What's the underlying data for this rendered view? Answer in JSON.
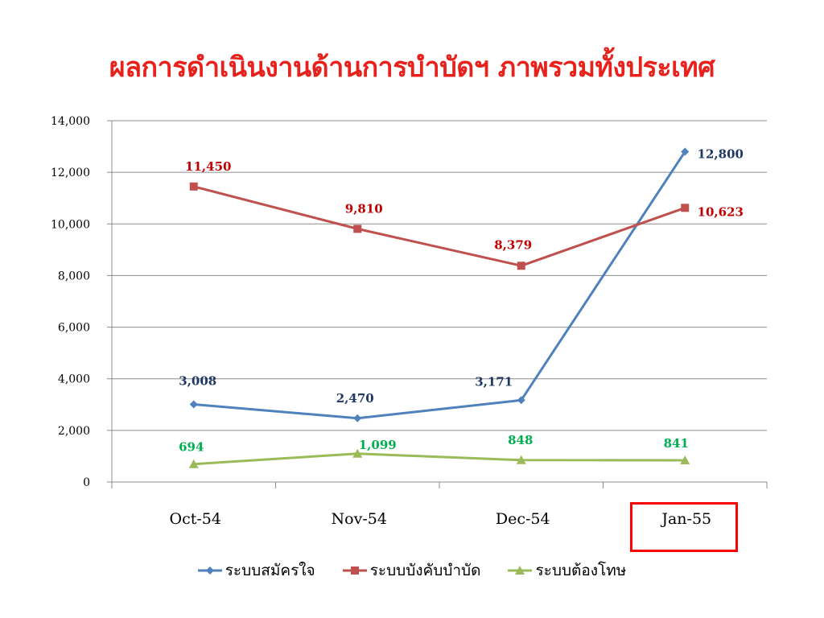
{
  "title": "ผลการดำเนินงานด้านการบำบัดฯ ภาพรวมทั้งประเทศ",
  "highlighted_category": "Jan-55",
  "chart_data": {
    "type": "line",
    "categories": [
      "Oct-54",
      "Nov-54",
      "Dec-54",
      "Jan-55"
    ],
    "ylim": [
      0,
      14000
    ],
    "yticks": [
      0,
      2000,
      4000,
      6000,
      8000,
      10000,
      12000,
      14000
    ],
    "ytick_labels": [
      "0",
      "2,000",
      "4,000",
      "6,000",
      "8,000",
      "10,000",
      "12,000",
      "14,000"
    ],
    "grid": true,
    "legend_position": "bottom",
    "series": [
      {
        "name": "ระบบสมัครใจ",
        "color": "#4f81bd",
        "label_color": "#1f3864",
        "marker": "diamond",
        "values": [
          3008,
          2470,
          3171,
          12800
        ],
        "labels": [
          "3,008",
          "2,470",
          "3,171",
          "12,800"
        ]
      },
      {
        "name": "ระบบบังคับบำบัด",
        "color": "#c0504d",
        "label_color": "#c00000",
        "marker": "square",
        "values": [
          11450,
          9810,
          8379,
          10623
        ],
        "labels": [
          "11,450",
          "9,810",
          "8,379",
          "10,623"
        ]
      },
      {
        "name": "ระบบต้องโทษ",
        "color": "#9bbb59",
        "label_color": "#00b050",
        "marker": "triangle",
        "values": [
          694,
          1099,
          848,
          841
        ],
        "labels": [
          "694",
          "1,099",
          "848",
          "841"
        ]
      }
    ]
  }
}
